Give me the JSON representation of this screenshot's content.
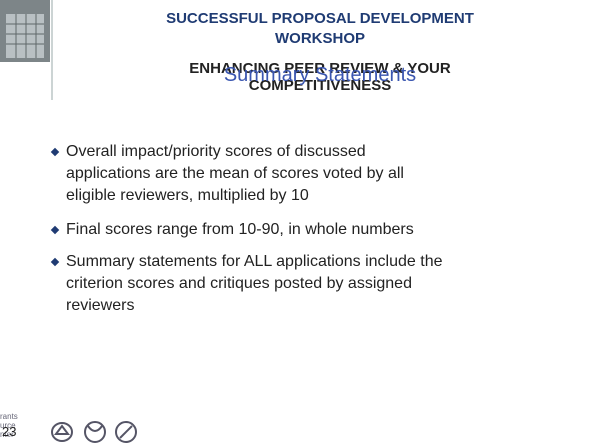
{
  "header": {
    "title_lines": [
      "SUCCESSFUL PROPOSAL DEVELOPMENT",
      "WORKSHOP"
    ],
    "subtitle_lines": [
      "ENHANCING PEER REVIEW & YOUR",
      "COMPETITIVENESS"
    ]
  },
  "slide": {
    "title": "Summary Statements",
    "bullets": [
      [
        "Overall impact/priority scores of discussed",
        "applications are the mean of scores voted by all",
        "eligible reviewers, multiplied by 10"
      ],
      [
        "Final scores range from 10-90, in whole numbers"
      ],
      [
        "Summary statements for ALL applications include the",
        "criterion scores and critiques posted by assigned",
        "reviewers"
      ]
    ]
  },
  "footer": {
    "slide_number": "23",
    "logo_text": [
      "rants",
      "urce",
      "nter"
    ]
  }
}
